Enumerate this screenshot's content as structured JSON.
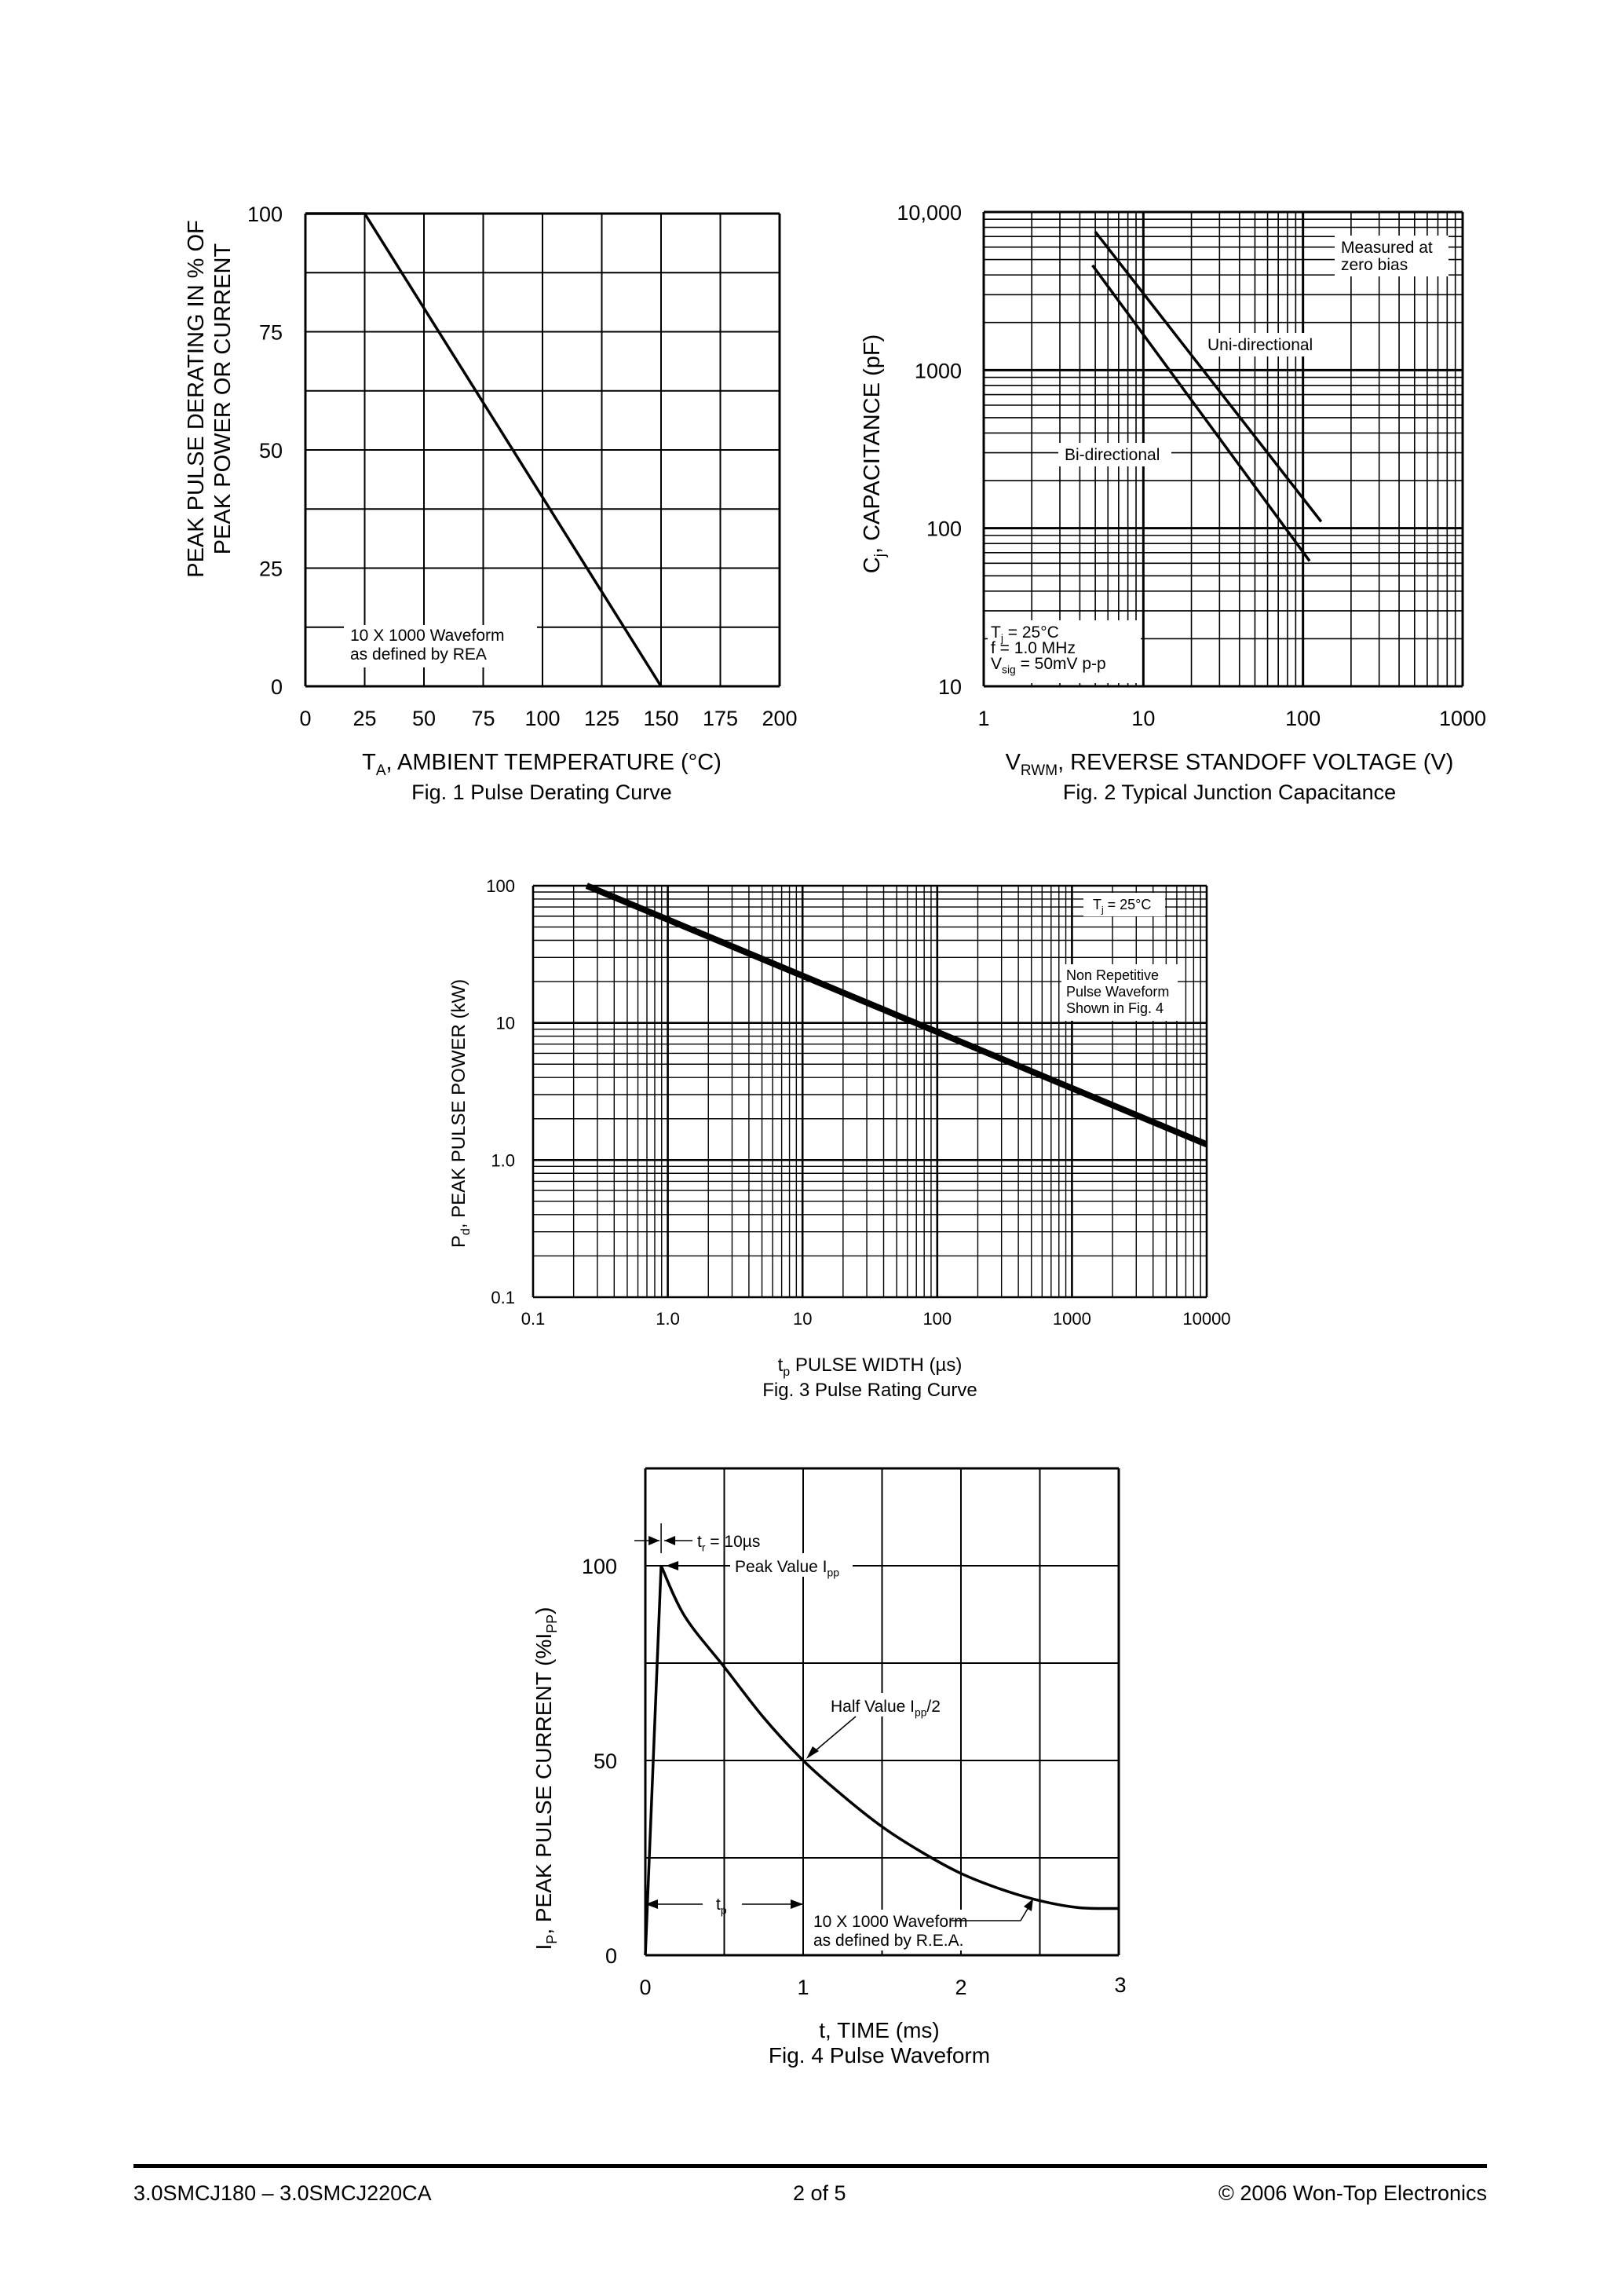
{
  "chart_data": [
    {
      "type": "line",
      "title": "Fig. 1  Pulse Derating Curve",
      "xlabel_main": "T",
      "xlabel_sub": "A",
      "xlabel_rest": ", AMBIENT TEMPERATURE (°C)",
      "ylabel_line1": "PEAK PULSE DERATING IN % OF",
      "ylabel_line2": "PEAK POWER OR CURRENT",
      "xlim": [
        0,
        200
      ],
      "ylim": [
        0,
        100
      ],
      "x_ticks": [
        "0",
        "25",
        "50",
        "75",
        "100",
        "125",
        "150",
        "175",
        "200"
      ],
      "y_ticks": [
        "0",
        "25",
        "50",
        "75",
        "100"
      ],
      "series": [
        {
          "name": "Derating",
          "x": [
            0,
            25,
            150
          ],
          "y": [
            100,
            100,
            0
          ]
        }
      ],
      "annotations": [
        "10 X 1000 Waveform",
        "as defined by REA"
      ]
    },
    {
      "type": "line",
      "title": "Fig. 2  Typical Junction Capacitance",
      "xscale": "log",
      "yscale": "log",
      "xlabel_main": "V",
      "xlabel_sub": "RWM",
      "xlabel_rest": ", REVERSE STANDOFF VOLTAGE (V)",
      "ylabel_main": "C",
      "ylabel_sub": "j",
      "ylabel_rest": ", CAPACITANCE (pF)",
      "xlim": [
        1,
        1000
      ],
      "ylim": [
        10,
        10000
      ],
      "x_ticks": [
        "1",
        "10",
        "100",
        "1000"
      ],
      "y_ticks": [
        "10",
        "100",
        "1000",
        "10,000"
      ],
      "series": [
        {
          "name": "Uni-directional",
          "x": [
            5,
            130
          ],
          "y": [
            7500,
            110
          ]
        },
        {
          "name": "Bi-directional",
          "x": [
            4.8,
            110
          ],
          "y": [
            4600,
            62
          ]
        }
      ],
      "annotations": {
        "measured_line1": "Measured at",
        "measured_line2": "zero bias",
        "uni": "Uni-directional",
        "bi": "Bi-directional",
        "cond1_main": "T",
        "cond1_sub": "j",
        "cond1_rest": " = 25°C",
        "cond2": "f = 1.0 MHz",
        "cond3_main": "V",
        "cond3_sub": "sig",
        "cond3_rest": " = 50mV p-p"
      }
    },
    {
      "type": "line",
      "title": "Fig. 3  Pulse Rating Curve",
      "xscale": "log",
      "yscale": "log",
      "xlabel_main": "t",
      "xlabel_sub": "p",
      "xlabel_rest": " PULSE WIDTH (µs)",
      "ylabel_main": "P",
      "ylabel_sub": "d",
      "ylabel_rest": ", PEAK PULSE POWER (kW)",
      "xlim": [
        0.1,
        10000
      ],
      "ylim": [
        0.1,
        100
      ],
      "x_ticks": [
        "0.1",
        "1.0",
        "10",
        "100",
        "1000",
        "10000"
      ],
      "y_ticks": [
        "0.1",
        "1.0",
        "10",
        "100"
      ],
      "series": [
        {
          "name": "Peak pulse power",
          "x": [
            0.25,
            10000
          ],
          "y": [
            100,
            1.3
          ]
        }
      ],
      "annotations": {
        "tj_main": "T",
        "tj_sub": "j",
        "tj_rest": " = 25°C",
        "note_line1": "Non Repetitive",
        "note_line2": "Pulse Waveform",
        "note_line3": "Shown in Fig. 4"
      }
    },
    {
      "type": "line",
      "title": "Fig. 4  Pulse Waveform",
      "xlabel": "t, TIME (ms)",
      "ylabel_main": "I",
      "ylabel_sub": "P",
      "ylabel_rest": ", PEAK PULSE CURRENT (%I",
      "ylabel_sub2": "PP",
      "ylabel_end": ")",
      "xlim": [
        0,
        3
      ],
      "ylim": [
        0,
        125
      ],
      "x_ticks": [
        "0",
        "1",
        "2",
        "3"
      ],
      "y_ticks": [
        "0",
        "50",
        "100"
      ],
      "series": [
        {
          "name": "Pulse",
          "x": [
            0,
            0.1,
            0.25,
            0.5,
            0.75,
            1,
            1.25,
            1.5,
            1.75,
            2,
            2.25,
            2.5,
            2.75,
            3
          ],
          "y": [
            0,
            100,
            87,
            74,
            61,
            50,
            41,
            33,
            26.5,
            21,
            17,
            14,
            12.2,
            12
          ]
        }
      ],
      "annotations": {
        "tr_main": "t",
        "tr_sub": "r",
        "tr_rest": " = 10µs",
        "peak_main": "Peak Value I",
        "peak_sub": "pp",
        "half_main": "Half Value I",
        "half_sub": "pp",
        "half_rest": "/2",
        "tp_main": "t",
        "tp_sub": "p",
        "wave_line1": "10 X 1000 Waveform",
        "wave_line2": "as defined by R.E.A."
      }
    }
  ],
  "footer": {
    "left": "3.0SMCJ180 – 3.0SMCJ220CA",
    "center": "2 of 5",
    "right": "© 2006 Won-Top Electronics"
  }
}
